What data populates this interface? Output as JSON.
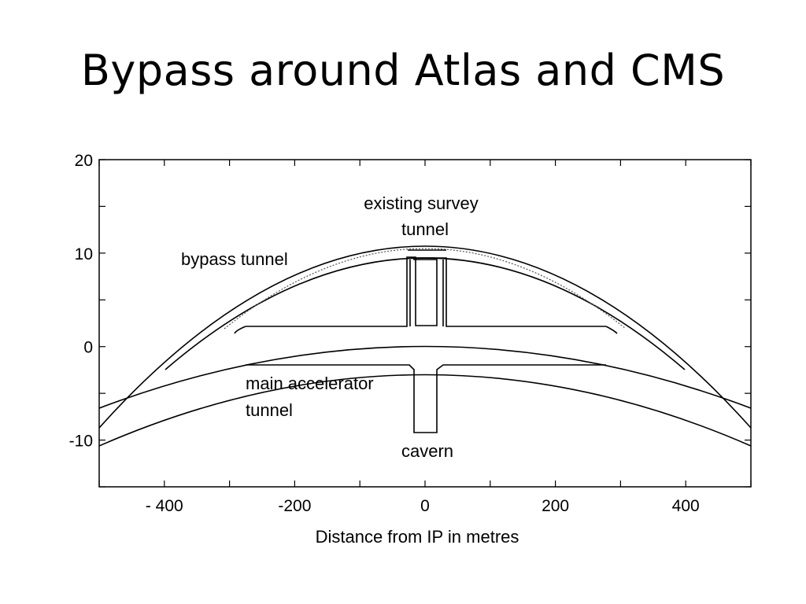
{
  "slide": {
    "title": "Bypass around Atlas and CMS"
  },
  "chart_data": {
    "type": "diagram",
    "xlabel": "Distance from IP in metres",
    "xlim": [
      -500,
      500
    ],
    "ylim": [
      -15,
      20
    ],
    "x_ticks": [
      {
        "value": -400,
        "label": "- 400"
      },
      {
        "value": -200,
        "label": "-200"
      },
      {
        "value": 0,
        "label": "0"
      },
      {
        "value": 200,
        "label": "200"
      },
      {
        "value": 400,
        "label": "400"
      }
    ],
    "y_ticks": [
      {
        "value": 20,
        "label": "20"
      },
      {
        "value": 10,
        "label": "10"
      },
      {
        "value": 0,
        "label": "0"
      },
      {
        "value": -10,
        "label": "-10"
      }
    ],
    "annotations": {
      "existing_survey_tunnel_line1": "existing survey",
      "existing_survey_tunnel_line2": "tunnel",
      "bypass_tunnel": "bypass tunnel",
      "main_accelerator_tunnel_line1": "main accelerator",
      "main_accelerator_tunnel_line2": "tunnel",
      "cavern": "cavern"
    }
  }
}
